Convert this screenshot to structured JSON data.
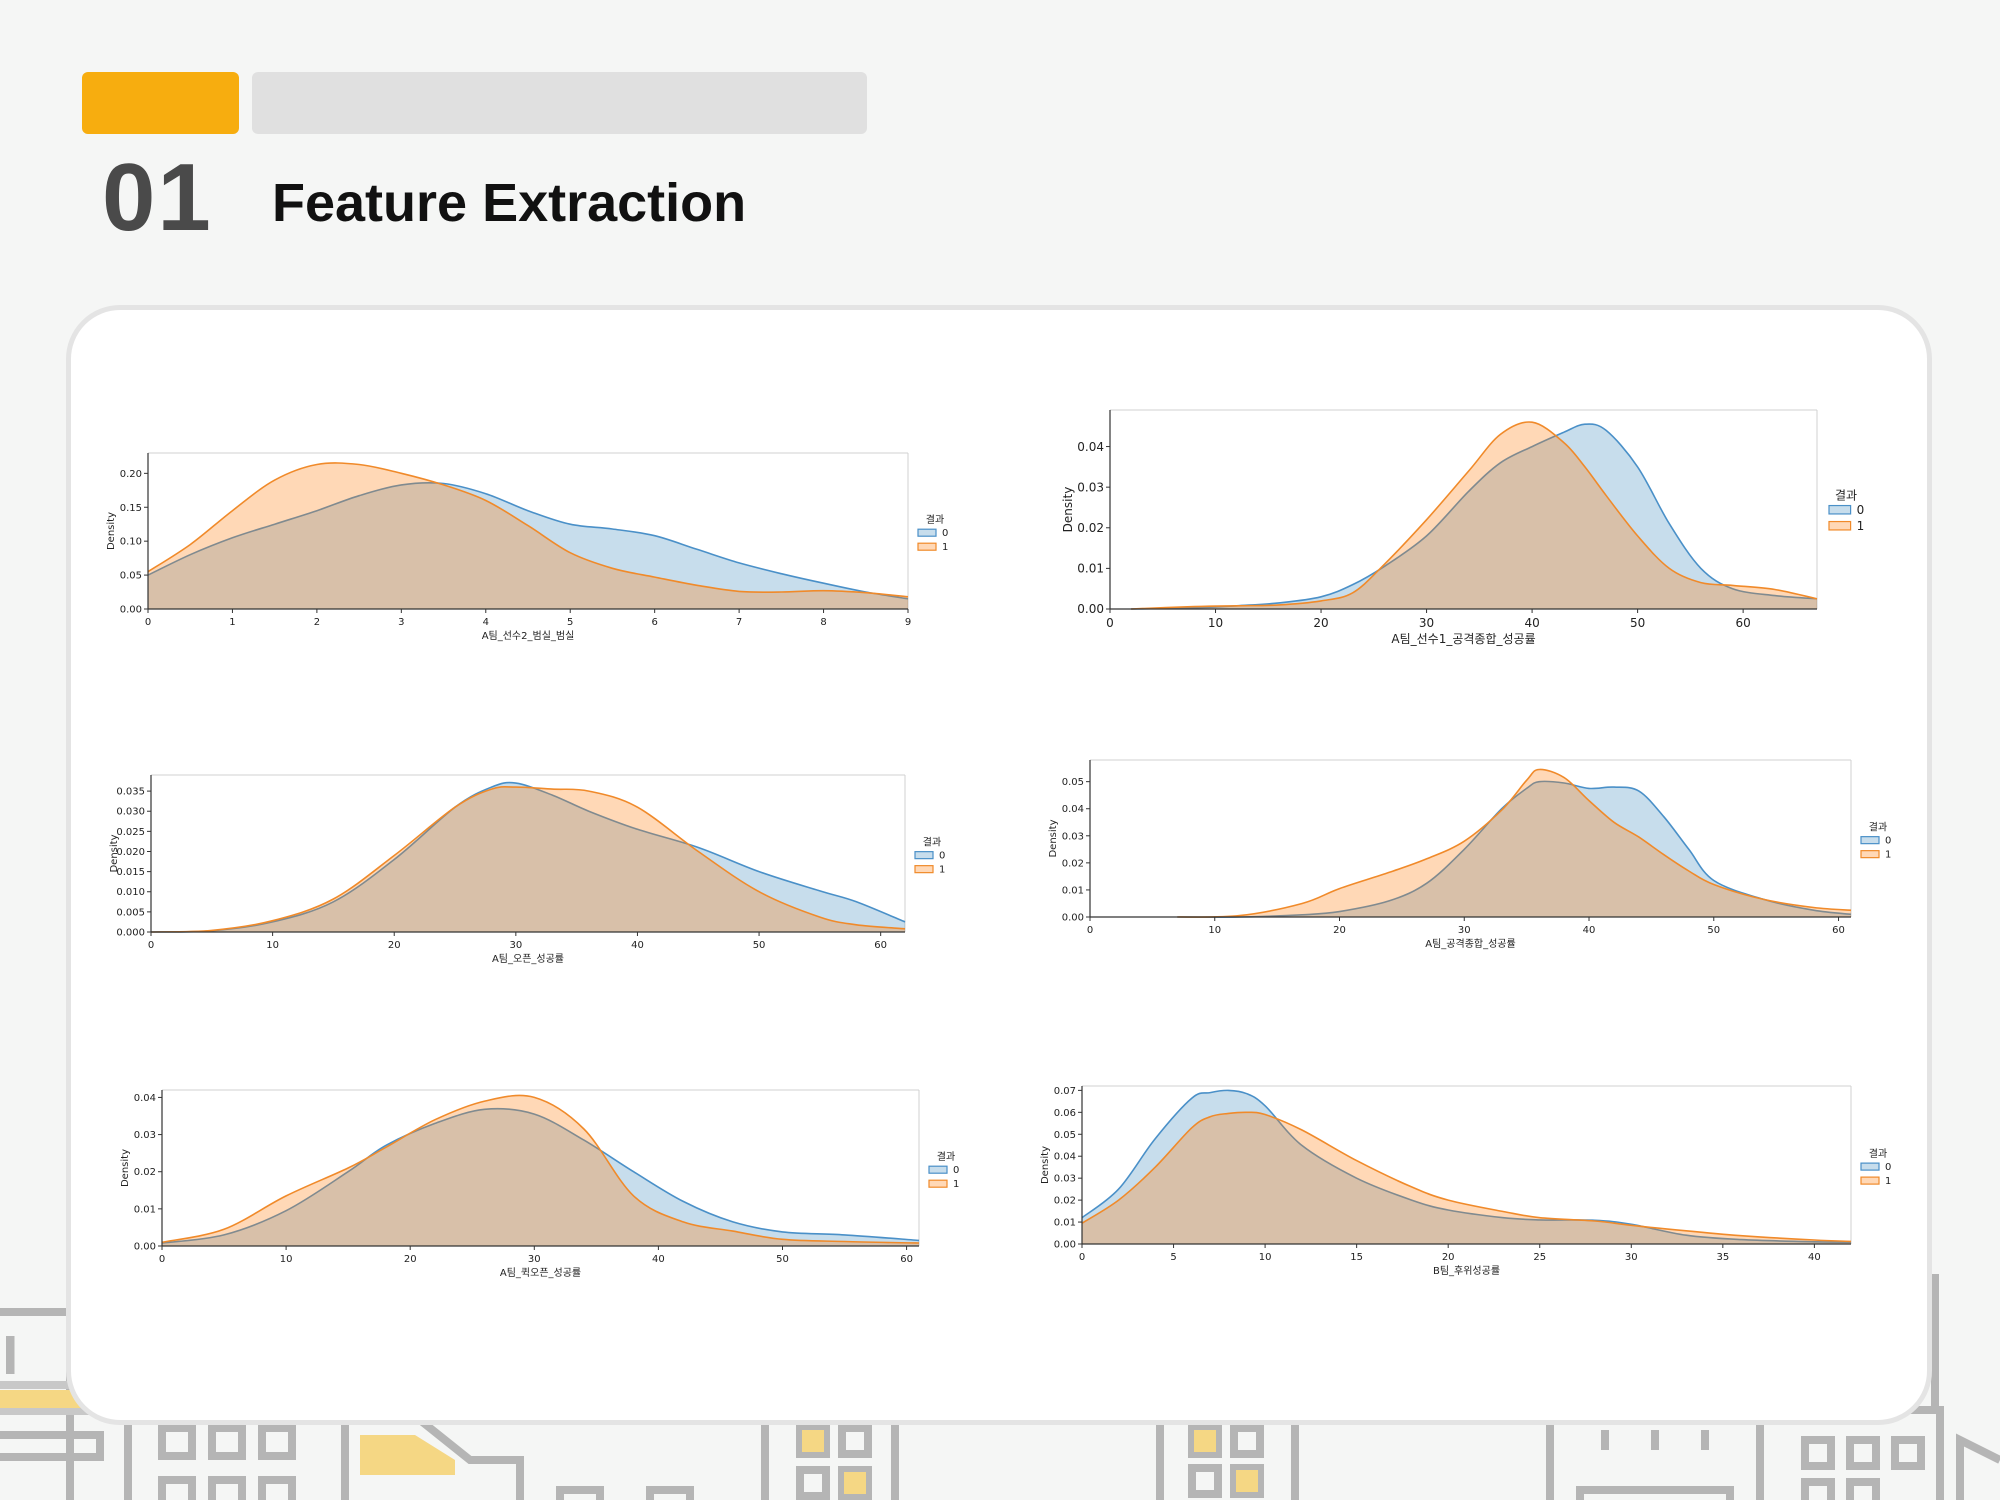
{
  "header": {
    "section_number": "01",
    "title": "Feature Extraction"
  },
  "chart_data": [
    {
      "type": "area",
      "xlabel": "A팀_선수2_범실_범실",
      "ylabel": "Density",
      "xlim": [
        0,
        9
      ],
      "ylim": [
        0,
        0.23
      ],
      "xticks": [
        "0",
        "1",
        "2",
        "3",
        "4",
        "5",
        "6",
        "7",
        "8",
        "9"
      ],
      "yticks": [
        "0.00",
        "0.05",
        "0.10",
        "0.15",
        "0.20"
      ],
      "legend_title": "결과",
      "legend_position": "right",
      "series": [
        {
          "name": "0",
          "x": [
            0,
            0.5,
            1,
            1.5,
            2,
            2.5,
            3,
            3.5,
            4,
            4.5,
            5,
            5.5,
            6,
            6.5,
            7,
            7.5,
            8,
            8.5,
            9
          ],
          "values": [
            0.05,
            0.08,
            0.105,
            0.125,
            0.145,
            0.167,
            0.183,
            0.185,
            0.17,
            0.145,
            0.125,
            0.118,
            0.108,
            0.088,
            0.068,
            0.052,
            0.038,
            0.025,
            0.015
          ]
        },
        {
          "name": "1",
          "x": [
            0,
            0.5,
            1,
            1.5,
            2,
            2.5,
            3,
            3.5,
            4,
            4.5,
            5,
            5.5,
            6,
            6.5,
            7,
            7.5,
            8,
            8.5,
            9
          ],
          "values": [
            0.055,
            0.095,
            0.145,
            0.19,
            0.213,
            0.213,
            0.2,
            0.183,
            0.16,
            0.123,
            0.083,
            0.06,
            0.047,
            0.035,
            0.026,
            0.025,
            0.027,
            0.024,
            0.018
          ]
        }
      ]
    },
    {
      "type": "area",
      "xlabel": "A팀_선수1_공격종합_성공률",
      "ylabel": "Density",
      "xlim": [
        0,
        67
      ],
      "ylim": [
        0,
        0.049
      ],
      "xticks": [
        "0",
        "10",
        "20",
        "30",
        "40",
        "50",
        "60"
      ],
      "yticks": [
        "0.00",
        "0.01",
        "0.02",
        "0.03",
        "0.04"
      ],
      "legend_title": "결과",
      "legend_position": "right",
      "series": [
        {
          "name": "0",
          "x": [
            2,
            8,
            12,
            16,
            20,
            23,
            26,
            30,
            34,
            37,
            40,
            43,
            45,
            47,
            50,
            53,
            56,
            59,
            63,
            67
          ],
          "values": [
            0,
            0.0003,
            0.0008,
            0.0015,
            0.003,
            0.006,
            0.0105,
            0.018,
            0.029,
            0.036,
            0.04,
            0.0435,
            0.0455,
            0.044,
            0.035,
            0.021,
            0.01,
            0.005,
            0.0033,
            0.0025
          ]
        },
        {
          "name": "1",
          "x": [
            2,
            8,
            12,
            16,
            20,
            23,
            26,
            30,
            34,
            37,
            40,
            43,
            45,
            47,
            50,
            53,
            56,
            59,
            63,
            67
          ],
          "values": [
            0,
            0.0006,
            0.0008,
            0.001,
            0.002,
            0.004,
            0.011,
            0.022,
            0.034,
            0.043,
            0.046,
            0.041,
            0.035,
            0.028,
            0.018,
            0.01,
            0.0065,
            0.0058,
            0.0048,
            0.0025
          ]
        }
      ]
    },
    {
      "type": "area",
      "xlabel": "A팀_오픈_성공률",
      "ylabel": "Density",
      "xlim": [
        0,
        62
      ],
      "ylim": [
        0,
        0.039
      ],
      "xticks": [
        "0",
        "10",
        "20",
        "30",
        "40",
        "50",
        "60"
      ],
      "yticks": [
        "0.000",
        "0.005",
        "0.010",
        "0.015",
        "0.020",
        "0.025",
        "0.030",
        "0.035"
      ],
      "legend_title": "결과",
      "legend_position": "right",
      "series": [
        {
          "name": "0",
          "x": [
            0,
            5,
            10,
            15,
            20,
            25,
            28,
            30,
            33,
            36,
            40,
            45,
            50,
            55,
            58,
            62
          ],
          "values": [
            0,
            0.0003,
            0.0025,
            0.0075,
            0.018,
            0.031,
            0.036,
            0.037,
            0.034,
            0.03,
            0.0255,
            0.021,
            0.015,
            0.0102,
            0.0075,
            0.0025
          ]
        },
        {
          "name": "1",
          "x": [
            0,
            5,
            10,
            15,
            20,
            25,
            28,
            30,
            33,
            36,
            40,
            45,
            50,
            55,
            58,
            62
          ],
          "values": [
            0,
            0.0004,
            0.0028,
            0.0082,
            0.019,
            0.031,
            0.0355,
            0.036,
            0.0355,
            0.035,
            0.031,
            0.02,
            0.01,
            0.0037,
            0.0018,
            0.0008
          ]
        }
      ]
    },
    {
      "type": "area",
      "xlabel": "A팀_공격종합_성공률",
      "ylabel": "Density",
      "xlim": [
        0,
        61
      ],
      "ylim": [
        0,
        0.058
      ],
      "xticks": [
        "0",
        "10",
        "20",
        "30",
        "40",
        "50",
        "60"
      ],
      "yticks": [
        "0.00",
        "0.01",
        "0.02",
        "0.03",
        "0.04",
        "0.05"
      ],
      "legend_title": "결과",
      "legend_position": "right",
      "series": [
        {
          "name": "0",
          "x": [
            7,
            12,
            17,
            20,
            24,
            27,
            30,
            33,
            35,
            36,
            38,
            40,
            42,
            44,
            46,
            48,
            50,
            54,
            58,
            61
          ],
          "values": [
            0,
            0,
            0.0008,
            0.002,
            0.006,
            0.0125,
            0.025,
            0.04,
            0.0475,
            0.05,
            0.0495,
            0.0475,
            0.048,
            0.0465,
            0.037,
            0.025,
            0.0135,
            0.0065,
            0.0025,
            0.001
          ]
        },
        {
          "name": "1",
          "x": [
            7,
            12,
            17,
            20,
            24,
            27,
            30,
            33,
            35,
            36,
            38,
            40,
            42,
            44,
            46,
            48,
            50,
            54,
            58,
            61
          ],
          "values": [
            0,
            0.0005,
            0.005,
            0.0105,
            0.0165,
            0.0215,
            0.028,
            0.0395,
            0.0505,
            0.0545,
            0.0515,
            0.043,
            0.035,
            0.0295,
            0.023,
            0.017,
            0.012,
            0.0065,
            0.0035,
            0.0025
          ]
        }
      ]
    },
    {
      "type": "area",
      "xlabel": "A팀_퀵오픈_성공률",
      "ylabel": "Density",
      "xlim": [
        0,
        61
      ],
      "ylim": [
        0,
        0.042
      ],
      "xticks": [
        "0",
        "10",
        "20",
        "30",
        "40",
        "50",
        "60"
      ],
      "yticks": [
        "0.00",
        "0.01",
        "0.02",
        "0.03",
        "0.04"
      ],
      "legend_title": "결과",
      "legend_position": "right",
      "series": [
        {
          "name": "0",
          "x": [
            0,
            5,
            10,
            15,
            18,
            22,
            26,
            30,
            34,
            38,
            42,
            46,
            50,
            55,
            61
          ],
          "values": [
            0.0008,
            0.003,
            0.0095,
            0.02,
            0.027,
            0.033,
            0.0368,
            0.0355,
            0.0285,
            0.02,
            0.012,
            0.0065,
            0.0038,
            0.003,
            0.0015
          ]
        },
        {
          "name": "1",
          "x": [
            0,
            5,
            10,
            15,
            18,
            22,
            26,
            30,
            34,
            38,
            42,
            46,
            50,
            55,
            61
          ],
          "values": [
            0.001,
            0.0045,
            0.0135,
            0.021,
            0.0265,
            0.034,
            0.039,
            0.04,
            0.0315,
            0.0135,
            0.0065,
            0.004,
            0.0018,
            0.0012,
            0.0008
          ]
        }
      ]
    },
    {
      "type": "area",
      "xlabel": "B팀_후위성공률",
      "ylabel": "Density",
      "xlim": [
        0,
        42
      ],
      "ylim": [
        0,
        0.072
      ],
      "xticks": [
        "0",
        "5",
        "10",
        "15",
        "20",
        "25",
        "30",
        "35",
        "40"
      ],
      "yticks": [
        "0.00",
        "0.01",
        "0.02",
        "0.03",
        "0.04",
        "0.05",
        "0.06",
        "0.07"
      ],
      "legend_title": "결과",
      "legend_position": "right",
      "series": [
        {
          "name": "0",
          "x": [
            0,
            2,
            4,
            6,
            7,
            8,
            9,
            10,
            12,
            15,
            18,
            20,
            23,
            25,
            28,
            30,
            33,
            36,
            40,
            42
          ],
          "values": [
            0.012,
            0.025,
            0.048,
            0.0665,
            0.069,
            0.07,
            0.0685,
            0.063,
            0.045,
            0.03,
            0.02,
            0.0155,
            0.012,
            0.011,
            0.0108,
            0.009,
            0.004,
            0.002,
            0.001,
            0.0008
          ]
        },
        {
          "name": "1",
          "x": [
            0,
            2,
            4,
            6,
            7,
            8,
            9,
            10,
            12,
            15,
            18,
            20,
            23,
            25,
            28,
            30,
            33,
            36,
            40,
            42
          ],
          "values": [
            0.0095,
            0.02,
            0.035,
            0.053,
            0.058,
            0.0595,
            0.06,
            0.059,
            0.052,
            0.038,
            0.026,
            0.02,
            0.0148,
            0.012,
            0.0105,
            0.0085,
            0.006,
            0.0038,
            0.0018,
            0.0012
          ]
        }
      ]
    }
  ]
}
